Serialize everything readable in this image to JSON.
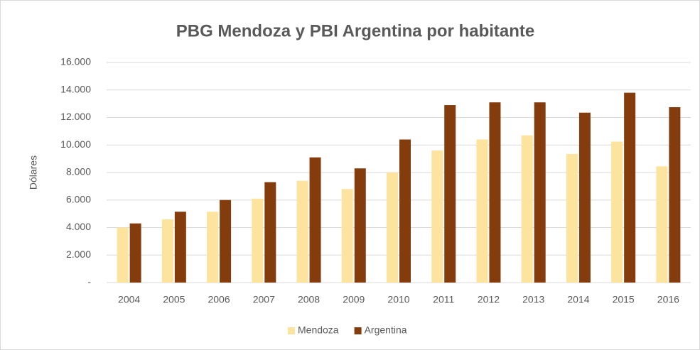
{
  "chart_data": {
    "type": "bar",
    "title": "PBG Mendoza y PBI Argentina por habitante",
    "y_label": "Dólares",
    "categories": [
      "2004",
      "2005",
      "2006",
      "2007",
      "2008",
      "2009",
      "2010",
      "2011",
      "2012",
      "2013",
      "2014",
      "2015",
      "2016"
    ],
    "series": [
      {
        "name": "Mendoza",
        "color": "#fde49e",
        "values": [
          4000,
          4600,
          5150,
          6100,
          7400,
          6800,
          8000,
          9600,
          10400,
          10700,
          9350,
          10250,
          8450
        ]
      },
      {
        "name": "Argentina",
        "color": "#843c0c",
        "values": [
          4300,
          5150,
          6000,
          7300,
          9100,
          8300,
          10400,
          12900,
          13100,
          13100,
          12350,
          13800,
          12750
        ]
      }
    ],
    "ylim": [
      0,
      16000
    ],
    "yticks": [
      {
        "value": 0,
        "label": "-"
      },
      {
        "value": 2000,
        "label": "2.000"
      },
      {
        "value": 4000,
        "label": "4.000"
      },
      {
        "value": 6000,
        "label": "6.000"
      },
      {
        "value": 8000,
        "label": "8.000"
      },
      {
        "value": 10000,
        "label": "10.000"
      },
      {
        "value": 12000,
        "label": "12.000"
      },
      {
        "value": 14000,
        "label": "14.000"
      },
      {
        "value": 16000,
        "label": "16.000"
      }
    ],
    "grid": true,
    "legend": "bottom"
  }
}
